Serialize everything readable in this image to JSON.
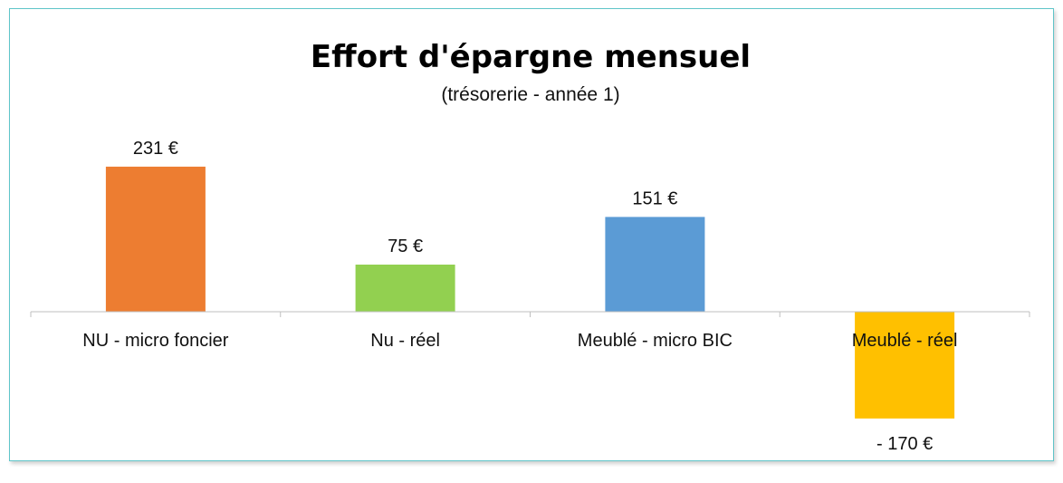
{
  "chart_data": {
    "type": "bar",
    "title": "Effort d'épargne mensuel",
    "subtitle": "(trésorerie - année 1)",
    "categories": [
      "NU - micro foncier",
      "Nu - réel",
      "Meublé - micro BIC",
      "Meublé - réel"
    ],
    "values": [
      231,
      75,
      151,
      -170
    ],
    "data_labels": [
      "231 €",
      "75 €",
      "151 €",
      "- 170 €"
    ],
    "colors": [
      "#ed7d31",
      "#92d050",
      "#5b9bd5",
      "#ffc000"
    ],
    "ylim": [
      -170,
      231
    ],
    "grid": false,
    "legend": "none",
    "xlabel": "",
    "ylabel": ""
  }
}
